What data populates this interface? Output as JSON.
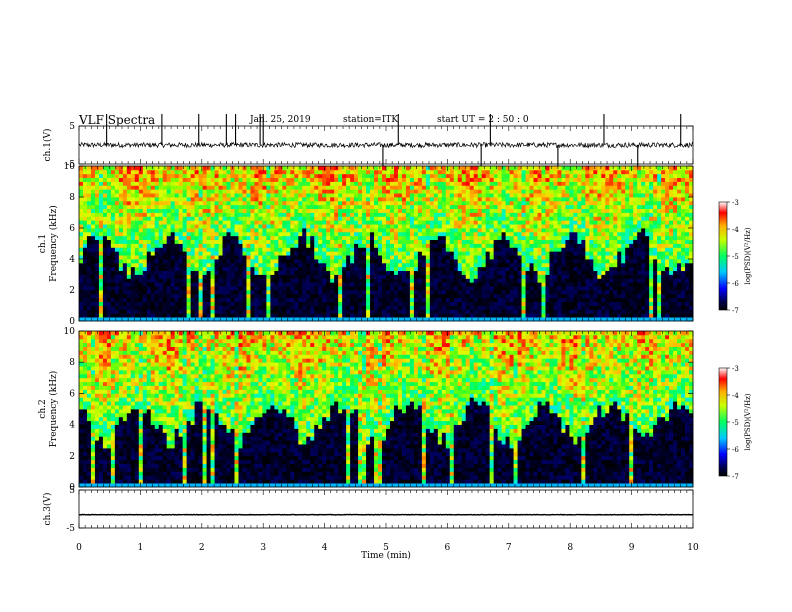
{
  "header": {
    "title": "VLF Spectra",
    "date": "Jan. 25, 2019",
    "station": "station=ITK",
    "start": "start UT = 2 : 50 : 0"
  },
  "chart_data": [
    {
      "type": "line",
      "id": "ch1-waveform",
      "ylabel": "ch.1(V)",
      "ylim": [
        -5,
        5
      ],
      "yticks": [
        5,
        -5
      ],
      "x_unit": "min",
      "xlim": [
        0,
        10
      ],
      "baseline": 0,
      "spikes_x": [
        0.45,
        1.35,
        1.95,
        2.4,
        2.55,
        2.95,
        3.0,
        4.95,
        5.2,
        6.55,
        6.7,
        7.8,
        8.55,
        9.1,
        9.8
      ]
    },
    {
      "type": "heatmap",
      "id": "ch1-spectrogram",
      "ylabel": "ch.1\nFrequency (kHz)",
      "ylim": [
        0,
        10
      ],
      "yticks": [
        0,
        2,
        4,
        6,
        8,
        10
      ],
      "xlim": [
        0,
        10
      ],
      "colorbar": {
        "label": "log(PSD)(V²/Hz)",
        "range": [
          -7,
          -3
        ],
        "ticks": [
          "-3",
          "-4",
          "-5",
          "-6",
          "-7"
        ]
      }
    },
    {
      "type": "heatmap",
      "id": "ch2-spectrogram",
      "ylabel": "ch.2\nFrequency (kHz)",
      "ylim": [
        0,
        10
      ],
      "yticks": [
        0,
        2,
        4,
        6,
        8,
        10
      ],
      "xlim": [
        0,
        10
      ],
      "colorbar": {
        "label": "log(PSD)(V²/Hz)",
        "range": [
          -7,
          -3
        ],
        "ticks": [
          "-3",
          "-4",
          "-5",
          "-6",
          "-7"
        ]
      }
    },
    {
      "type": "line",
      "id": "ch3-waveform",
      "ylabel": "ch.3(V)",
      "ylim": [
        -5,
        5
      ],
      "yticks": [
        5,
        -5
      ],
      "xlim": [
        0,
        10
      ],
      "baseline": -1.5
    }
  ],
  "xaxis": {
    "label": "Time (min)",
    "ticks": [
      "0",
      "1",
      "2",
      "3",
      "4",
      "5",
      "6",
      "7",
      "8",
      "9",
      "10"
    ],
    "range": [
      0,
      10
    ]
  }
}
